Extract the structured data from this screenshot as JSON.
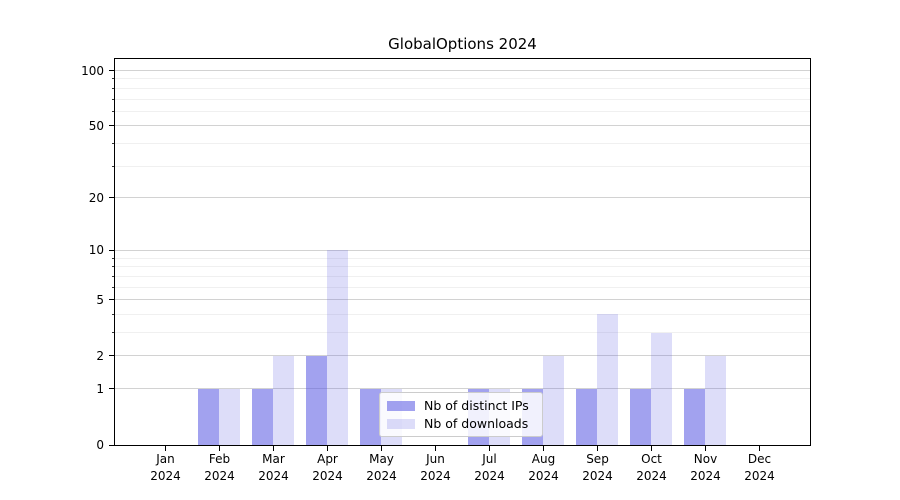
{
  "chart_data": {
    "type": "bar",
    "title": "GlobalOptions 2024",
    "categories": [
      "Jan\n2024",
      "Feb\n2024",
      "Mar\n2024",
      "Apr\n2024",
      "May\n2024",
      "Jun\n2024",
      "Jul\n2024",
      "Aug\n2024",
      "Sep\n2024",
      "Oct\n2024",
      "Nov\n2024",
      "Dec\n2024"
    ],
    "series": [
      {
        "name": "Nb of distinct IPs",
        "color": "rgba(85,85,225,0.55)",
        "values": [
          0,
          1,
          1,
          2,
          1,
          0,
          1,
          1,
          1,
          1,
          1,
          0
        ]
      },
      {
        "name": "Nb of downloads",
        "color": "rgba(85,85,225,0.2)",
        "values": [
          0,
          1,
          2,
          10,
          1,
          0,
          1,
          2,
          4,
          3,
          2,
          0
        ]
      }
    ],
    "xlabel": "",
    "ylabel": "",
    "yscale": "log1p",
    "ylim": [
      0,
      115
    ],
    "yticks": [
      0,
      1,
      2,
      5,
      10,
      20,
      50,
      100
    ],
    "minor_yticks": [
      3,
      4,
      6,
      7,
      8,
      9,
      30,
      40,
      60,
      70,
      80,
      90
    ],
    "grid": true,
    "legend": {
      "position": "lower center",
      "items": [
        "Nb of distinct IPs",
        "Nb of downloads"
      ]
    }
  },
  "colors": {
    "bar_distinct_ips_rendered": "#a1a1ee",
    "bar_downloads_rendered": "#dedef9",
    "grid_major": "#d2d2d2",
    "grid_minor": "#f0f0f0",
    "axis": "#000000",
    "legend_border": "#cccccc",
    "background": "#ffffff"
  }
}
